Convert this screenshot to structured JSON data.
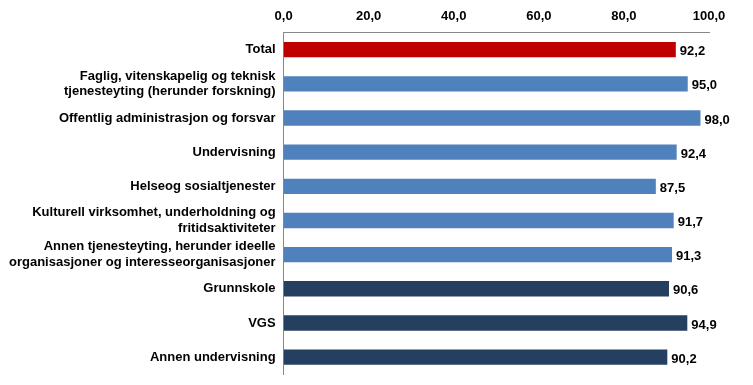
{
  "chart_data": {
    "type": "bar",
    "orientation": "horizontal",
    "categories": [
      "Total",
      "Faglig, vitenskapelig og teknisk\ntjenesteyting (herunder forskning)",
      "Offentlig administrasjon og forsvar",
      "Undervisning",
      "Helseog sosialtjenester",
      "Kulturell virksomhet, underholdning og\nfritidsaktiviteter",
      "Annen tjenesteyting, herunder ideelle\norganisasjoner og interesseorganisasjoner",
      "Grunnskole",
      "VGS",
      "Annen undervisning"
    ],
    "values": [
      92.2,
      95.0,
      98.0,
      92.4,
      87.5,
      91.7,
      91.3,
      90.6,
      94.9,
      90.2
    ],
    "value_labels": [
      "92,2",
      "95,0",
      "98,0",
      "92,4",
      "87,5",
      "91,7",
      "91,3",
      "90,6",
      "94,9",
      "90,2"
    ],
    "colors": [
      "#c00000",
      "#4f81bd",
      "#4f81bd",
      "#4f81bd",
      "#4f81bd",
      "#4f81bd",
      "#4f81bd",
      "#243f60",
      "#243f60",
      "#243f60"
    ],
    "xlim": [
      0,
      100
    ],
    "xticks": [
      {
        "value": 0,
        "label": "0,0"
      },
      {
        "value": 20,
        "label": "20,0"
      },
      {
        "value": 40,
        "label": "40,0"
      },
      {
        "value": 60,
        "label": "60,0"
      },
      {
        "value": 80,
        "label": "80,0"
      },
      {
        "value": 100,
        "label": "100,0"
      }
    ],
    "grid": false,
    "data_labels": true
  }
}
